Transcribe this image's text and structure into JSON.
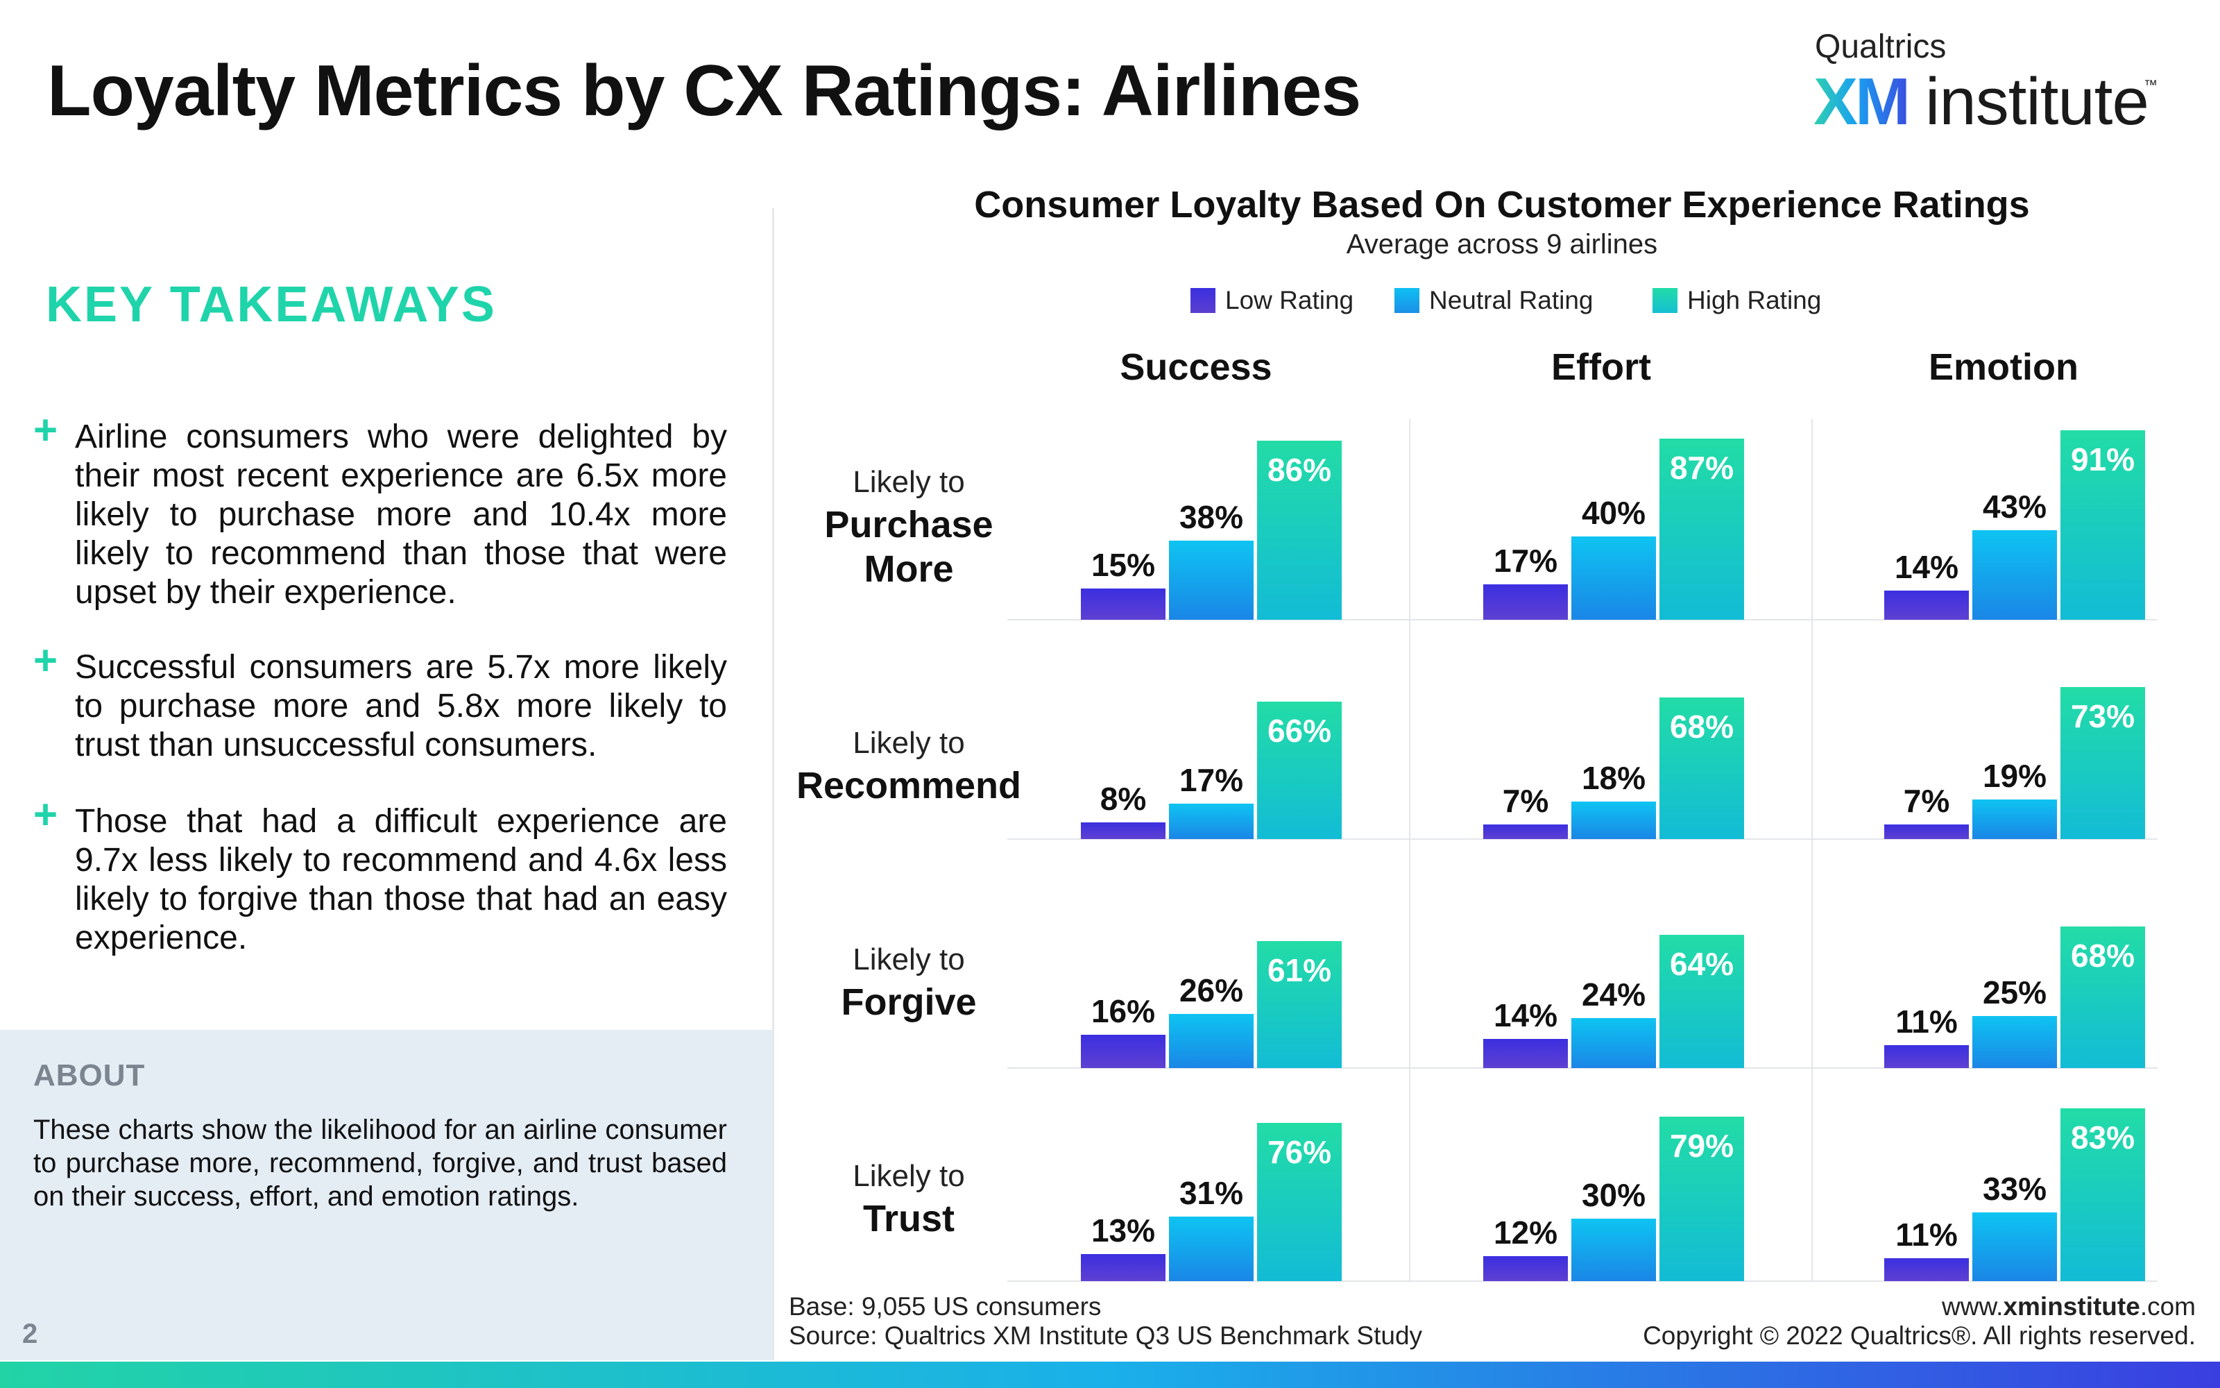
{
  "header": {
    "title": "Loyalty Metrics by CX Ratings: Airlines",
    "brand_top": "Qualtrics",
    "brand_xm": "XM",
    "brand_institute": "institute",
    "brand_tm": "™"
  },
  "takeaways": {
    "title": "KEY TAKEAWAYS",
    "items": [
      "Airline consumers who were delighted by their most recent experience are 6.5x more likely to purchase more and 10.4x more likely to recommend than those that were upset by their experience.",
      "Successful consumers are 5.7x more likely to purchase more and 5.8x more likely to trust than unsuccessful consumers.",
      "Those that had a difficult experience are 9.7x less likely to recommend and 4.6x less likely to forgive than those that had an easy experience."
    ],
    "bullet": "+"
  },
  "about": {
    "title": "ABOUT",
    "text": "These charts show the likelihood for an airline consumer to purchase more, recommend, forgive, and trust based on their success, effort, and emotion ratings."
  },
  "page_number": "2",
  "footer": {
    "base": "Base: 9,055 US consumers",
    "source": "Source: Qualtrics XM Institute Q3 US Benchmark Study",
    "url_prefix": "www.",
    "url_bold": "xminstitute",
    "url_suffix": ".com",
    "copyright": "Copyright © 2022 Qualtrics®. All rights reserved."
  },
  "colors": {
    "low": "#4a2fd8",
    "neutral": "#12a4ef",
    "high": "#22d6ab",
    "accent": "#1fd4aa"
  },
  "chart_data": {
    "type": "bar",
    "title": "Consumer Loyalty Based On Customer Experience Ratings",
    "subtitle": "Average across 9 airlines",
    "legend": [
      "Low Rating",
      "Neutral Rating",
      "High Rating"
    ],
    "legend_position": "top",
    "columns": [
      "Success",
      "Effort",
      "Emotion"
    ],
    "rows": [
      {
        "prefix": "Likely to",
        "label": "Purchase More"
      },
      {
        "prefix": "Likely to",
        "label": "Recommend"
      },
      {
        "prefix": "Likely to",
        "label": "Forgive"
      },
      {
        "prefix": "Likely to",
        "label": "Trust"
      }
    ],
    "unit": "%",
    "values": [
      [
        [
          15,
          38,
          86
        ],
        [
          17,
          40,
          87
        ],
        [
          14,
          43,
          91
        ]
      ],
      [
        [
          8,
          17,
          66
        ],
        [
          7,
          18,
          68
        ],
        [
          7,
          19,
          73
        ]
      ],
      [
        [
          16,
          26,
          61
        ],
        [
          14,
          24,
          64
        ],
        [
          11,
          25,
          68
        ]
      ],
      [
        [
          13,
          31,
          76
        ],
        [
          12,
          30,
          79
        ],
        [
          11,
          33,
          83
        ]
      ]
    ],
    "ylim": [
      0,
      100
    ],
    "grid": false
  }
}
